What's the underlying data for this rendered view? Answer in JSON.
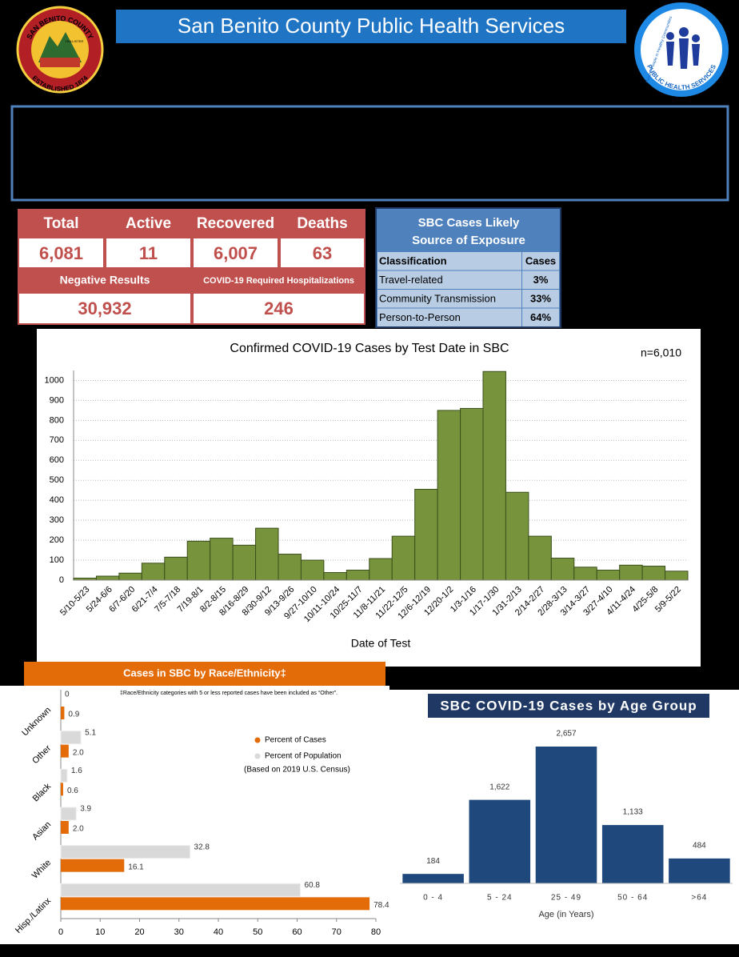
{
  "header": {
    "title": "San Benito County Public Health Services",
    "left_logo": [
      "SAN BENITO COUNTY",
      "HOLLISTER",
      "ESTABLISHED 1874"
    ],
    "right_logo": [
      "SAN BENITO COUNTY",
      "PUBLIC HEALTH SERVICES",
      "Healthy People in Healthy Communities"
    ]
  },
  "stats": {
    "headers": [
      "Total",
      "Active",
      "Recovered",
      "Deaths"
    ],
    "values": [
      "6,081",
      "11",
      "6,007",
      "63"
    ],
    "headers2": [
      "Negative Results",
      "COVID-19 Required Hospitalizations"
    ],
    "values2": [
      "30,932",
      "246"
    ]
  },
  "exposure": {
    "title": [
      "SBC Cases Likely",
      "Source of Exposure"
    ],
    "columns": [
      "Classification",
      "Cases"
    ],
    "rows": [
      [
        "Travel-related",
        "3%"
      ],
      [
        "Community Transmission",
        "33%"
      ],
      [
        "Person-to-Person",
        "64%"
      ]
    ]
  },
  "chart_data": [
    {
      "type": "bar",
      "title": "Confirmed COVID-19 Cases by Test Date in SBC",
      "annotation": "n=6,010",
      "x_label": "Date of Test",
      "categories": [
        "5/10-5/23",
        "5/24-6/6",
        "6/7-6/20",
        "6/21-7/4",
        "7/5-7/18",
        "7/19-8/1",
        "8/2-8/15",
        "8/16-8/29",
        "8/30-9/12",
        "9/13-9/26",
        "9/27-10/10",
        "10/11-10/24",
        "10/25-11/7",
        "11/8-11/21",
        "11/22-12/5",
        "12/6-12/19",
        "12/20-1/2",
        "1/3-1/16",
        "1/17-1/30",
        "1/31-2/13",
        "2/14-2/27",
        "2/28-3/13",
        "3/14-3/27",
        "3/27-4/10",
        "4/11-4/24",
        "4/25-5/8",
        "5/9-5/22"
      ],
      "values": [
        10,
        20,
        35,
        85,
        115,
        195,
        210,
        175,
        260,
        130,
        100,
        38,
        50,
        108,
        220,
        455,
        850,
        860,
        1045,
        440,
        220,
        110,
        65,
        50,
        75,
        70,
        45
      ],
      "color": "#77933c",
      "ylim": [
        0,
        1050
      ],
      "yticks": [
        0,
        100,
        200,
        300,
        400,
        500,
        600,
        700,
        800,
        900,
        1000
      ],
      "grid": true
    },
    {
      "type": "hbar",
      "title": "Cases in SBC by Race/Ethnicity‡",
      "footnote": "‡Race/Ethnicity categories with 5 or less reported cases have been included as “Other”.",
      "categories": [
        "Unknown",
        "Other",
        "Black",
        "Asian",
        "White",
        "Hisp./Latinx"
      ],
      "series": [
        {
          "name": "Percent of Population",
          "color": "#d9d9d9",
          "values": [
            0,
            5.1,
            1.6,
            3.9,
            32.8,
            60.8
          ],
          "value_labels": [
            "0",
            "5.1",
            "1.6",
            "3.9",
            "32.8",
            "60.8"
          ]
        },
        {
          "name": "Percent of Cases",
          "color": "#e36c09",
          "values": [
            0.9,
            2.0,
            0.6,
            2.0,
            16.1,
            78.4
          ],
          "value_labels": [
            "0.9",
            "2.0",
            "0.6",
            "2.0",
            "16.1",
            "78.4"
          ]
        }
      ],
      "legend_note": "(Based on 2019 U.S. Census)",
      "xlim": [
        0,
        80
      ],
      "xticks": [
        0,
        10,
        20,
        30,
        40,
        50,
        60,
        70,
        80
      ]
    },
    {
      "type": "bar",
      "title": "SBC COVID-19 Cases by Age Group",
      "x_label": "Age (in Years)",
      "categories": [
        "0 - 4",
        "5 - 24",
        "25 - 49",
        "50 - 64",
        ">64"
      ],
      "values": [
        184,
        1622,
        2657,
        1133,
        484
      ],
      "value_labels": [
        "184",
        "1,622",
        "2,657",
        "1,133",
        "484"
      ],
      "color": "#1f497d"
    }
  ]
}
